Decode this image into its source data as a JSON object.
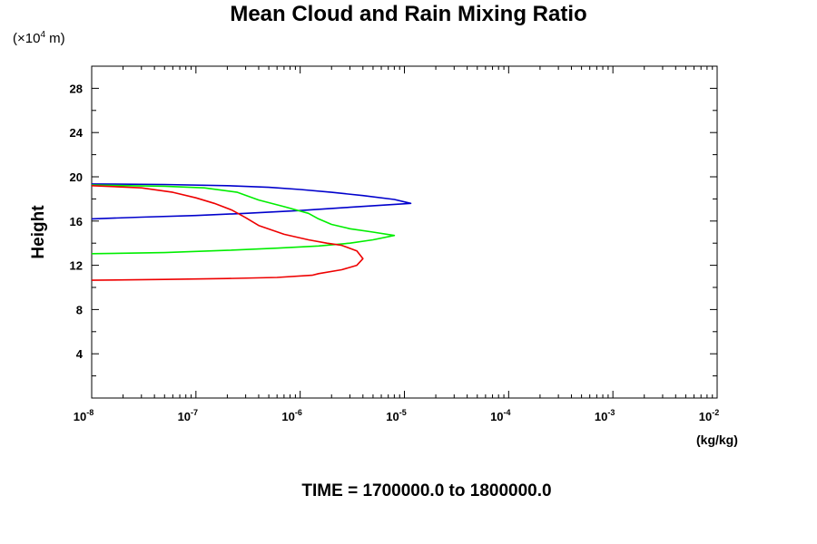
{
  "chart_data": {
    "type": "line",
    "title": "Mean Cloud and Rain Mixing Ratio",
    "ylabel": "Height",
    "ylabel_scale": {
      "prefix": "(×10",
      "exponent": "4",
      "suffix": " m)"
    },
    "xlabel": "(kg/kg)",
    "x_scale": "log",
    "xlim": [
      1e-08,
      0.01
    ],
    "ylim": [
      0,
      30
    ],
    "y_ticks": [
      4,
      8,
      12,
      16,
      20,
      24,
      28
    ],
    "x_ticks": [
      {
        "value": 1e-08,
        "base": "10",
        "exp": "-8"
      },
      {
        "value": 1e-07,
        "base": "10",
        "exp": "-7"
      },
      {
        "value": 1e-06,
        "base": "10",
        "exp": "-6"
      },
      {
        "value": 1e-05,
        "base": "10",
        "exp": "-5"
      },
      {
        "value": 0.0001,
        "base": "10",
        "exp": "-4"
      },
      {
        "value": 0.001,
        "base": "10",
        "exp": "-3"
      },
      {
        "value": 0.01,
        "base": "10",
        "exp": "-2"
      }
    ],
    "grid": false,
    "series": [
      {
        "color": "#0000cc",
        "points": [
          [
            1e-08,
            16.2
          ],
          [
            3e-08,
            16.35
          ],
          [
            1e-07,
            16.5
          ],
          [
            3e-07,
            16.7
          ],
          [
            1e-06,
            16.95
          ],
          [
            3e-06,
            17.25
          ],
          [
            1.15e-05,
            17.6
          ],
          [
            8e-06,
            17.95
          ],
          [
            4e-06,
            18.3
          ],
          [
            2e-06,
            18.6
          ],
          [
            1e-06,
            18.85
          ],
          [
            5e-07,
            19.05
          ],
          [
            2e-07,
            19.2
          ],
          [
            5e-08,
            19.3
          ],
          [
            1e-08,
            19.35
          ]
        ]
      },
      {
        "color": "#00ee00",
        "points": [
          [
            1e-08,
            13.05
          ],
          [
            5e-08,
            13.15
          ],
          [
            2e-07,
            13.35
          ],
          [
            6e-07,
            13.55
          ],
          [
            1.5e-06,
            13.75
          ],
          [
            3e-06,
            14.0
          ],
          [
            5e-06,
            14.3
          ],
          [
            8e-06,
            14.7
          ],
          [
            5e-06,
            15.0
          ],
          [
            3e-06,
            15.3
          ],
          [
            2e-06,
            15.7
          ],
          [
            1.5e-06,
            16.2
          ],
          [
            1.2e-06,
            16.7
          ],
          [
            7e-07,
            17.3
          ],
          [
            4e-07,
            17.9
          ],
          [
            2.5e-07,
            18.6
          ],
          [
            1.2e-07,
            19.0
          ],
          [
            5e-08,
            19.15
          ],
          [
            1e-08,
            19.25
          ]
        ]
      },
      {
        "color": "#ee0000",
        "points": [
          [
            1e-08,
            10.65
          ],
          [
            5e-08,
            10.72
          ],
          [
            2e-07,
            10.8
          ],
          [
            6e-07,
            10.9
          ],
          [
            1.3e-06,
            11.1
          ],
          [
            1.5e-06,
            11.25
          ],
          [
            2.5e-06,
            11.6
          ],
          [
            3.5e-06,
            12.0
          ],
          [
            4e-06,
            12.6
          ],
          [
            3.5e-06,
            13.3
          ],
          [
            2.5e-06,
            13.8
          ],
          [
            1.8e-06,
            14.0
          ],
          [
            1.2e-06,
            14.3
          ],
          [
            7e-07,
            14.8
          ],
          [
            4e-07,
            15.6
          ],
          [
            3e-07,
            16.3
          ],
          [
            2.2e-07,
            17.0
          ],
          [
            1.5e-07,
            17.6
          ],
          [
            1e-07,
            18.1
          ],
          [
            6e-08,
            18.6
          ],
          [
            3e-08,
            19.0
          ],
          [
            1e-08,
            19.2
          ]
        ]
      }
    ]
  },
  "footer": "TIME = 1700000.0 to 1800000.0"
}
